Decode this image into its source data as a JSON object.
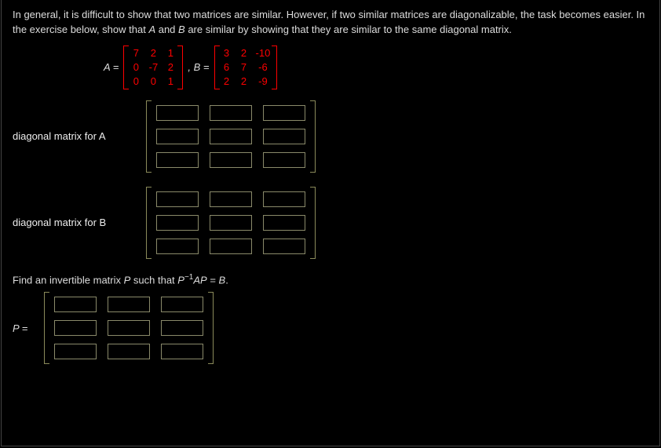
{
  "text_color": "#dddddd",
  "bg_color": "#000000",
  "highlight_color": "#ff0000",
  "bracket_color_display": "#ff0000",
  "bracket_color_input": "#8a8a5a",
  "instructions": {
    "part1": "In general, it is difficult to show that two matrices are similar. However, if two similar matrices are diagonalizable, the task becomes easier. In the exercise below, show that ",
    "A": "A",
    "part2": " and ",
    "B": "B",
    "part3": " are similar by showing that they are similar to the same diagonal matrix."
  },
  "matrix_A": {
    "label": "A =",
    "rows": [
      [
        "7",
        "2",
        "1"
      ],
      [
        "0",
        "-7",
        "2"
      ],
      [
        "0",
        "0",
        "1"
      ]
    ]
  },
  "matrix_B": {
    "label": ", B =",
    "rows": [
      [
        "3",
        "2",
        "-10"
      ],
      [
        "6",
        "7",
        "-6"
      ],
      [
        "2",
        "2",
        "-9"
      ]
    ]
  },
  "diag_A_label": "diagonal matrix for A",
  "diag_B_label": "diagonal matrix for B",
  "prompt_P": {
    "pre": "Find an invertible matrix ",
    "P": "P",
    "mid": " such that ",
    "eq1": "P",
    "sup": "−1",
    "eq2": "AP",
    "eq3": " = ",
    "eq4": "B",
    "post": "."
  },
  "P_label": "P =",
  "input_grid": {
    "rows": 3,
    "cols": 3
  }
}
